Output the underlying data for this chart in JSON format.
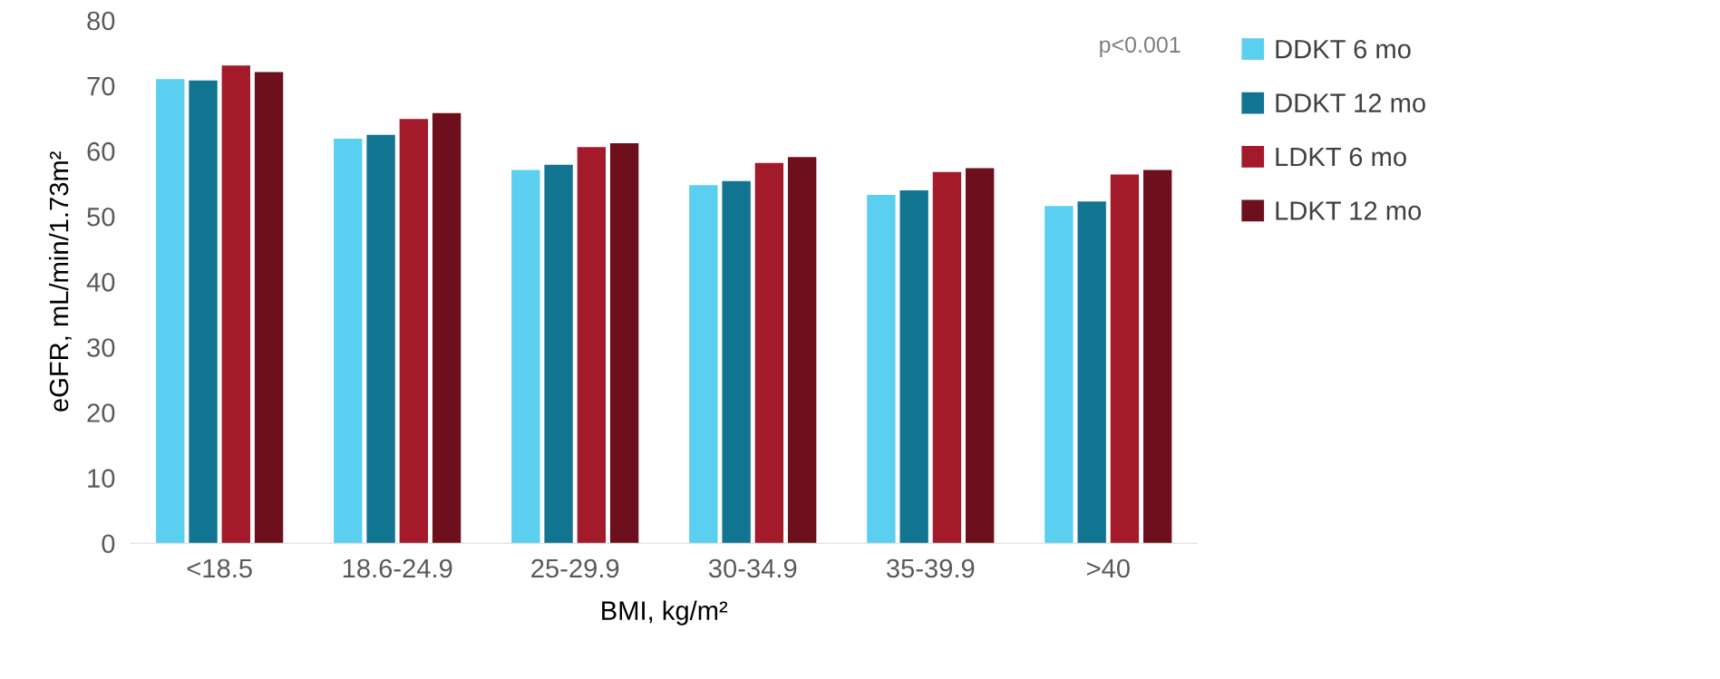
{
  "chart_data": {
    "type": "bar",
    "xlabel": "BMI, kg/m²",
    "ylabel": "eGFR, mL/min/1.73m²",
    "categories": [
      "<18.5",
      "18.6-24.9",
      "25-29.9",
      "30-34.9",
      "35-39.9",
      ">40"
    ],
    "series": [
      {
        "name": "DDKT 6 mo",
        "color": "#5bcfef",
        "values": [
          71.0,
          61.9,
          57.1,
          54.8,
          53.3,
          51.6
        ]
      },
      {
        "name": "DDKT 12 mo",
        "color": "#117592",
        "values": [
          70.8,
          62.5,
          57.9,
          55.4,
          54.0,
          52.3
        ]
      },
      {
        "name": "LDKT 6 mo",
        "color": "#a31a2b",
        "values": [
          73.1,
          64.9,
          60.6,
          58.2,
          56.8,
          56.4
        ]
      },
      {
        "name": "LDKT 12 mo",
        "color": "#6d0f1c",
        "values": [
          72.1,
          65.8,
          61.2,
          59.1,
          57.4,
          57.1
        ]
      }
    ],
    "ylim": [
      0,
      80
    ],
    "yticks": [
      0,
      10,
      20,
      30,
      40,
      50,
      60,
      70,
      80
    ],
    "annotations": [
      "p<0.001"
    ],
    "legend": "top right",
    "grid": false
  }
}
